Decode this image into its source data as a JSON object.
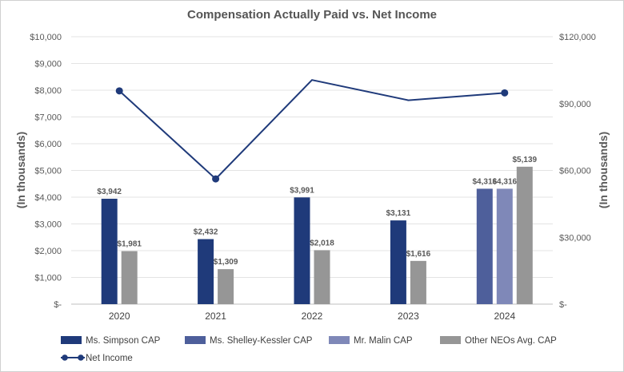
{
  "chart_data": {
    "type": "bar",
    "title": "Compensation Actually Paid vs. Net Income",
    "ylabel_left": "(In thousands)",
    "ylabel_right": "(In thousands)",
    "categories": [
      "2020",
      "2021",
      "2022",
      "2023",
      "2024"
    ],
    "ylim_left": [
      0,
      10000
    ],
    "ylim_right": [
      0,
      120000
    ],
    "yticks_left": [
      "$-",
      "$1,000",
      "$2,000",
      "$3,000",
      "$4,000",
      "$5,000",
      "$6,000",
      "$7,000",
      "$8,000",
      "$9,000",
      "$10,000"
    ],
    "yticks_right": [
      "$-",
      "$30,000",
      "$60,000",
      "$90,000",
      "$120,000"
    ],
    "grid": true,
    "legend_position": "bottom",
    "series": [
      {
        "name": "Ms. Simpson CAP",
        "color": "#1f3a7a",
        "values": [
          3942,
          2432,
          3991,
          3131,
          null
        ],
        "labels": [
          "$3,942",
          "$2,432",
          "$3,991",
          "$3,131",
          null
        ]
      },
      {
        "name": "Ms. Shelley-Kessler CAP",
        "color": "#4e5f9b",
        "values": [
          null,
          null,
          null,
          null,
          4316
        ],
        "labels": [
          null,
          null,
          null,
          null,
          "$4,316"
        ]
      },
      {
        "name": "Mr. Malin CAP",
        "color": "#7f88b8",
        "values": [
          null,
          null,
          null,
          null,
          4316
        ],
        "labels": [
          null,
          null,
          null,
          null,
          "$4,316"
        ]
      },
      {
        "name": "Other NEOs Avg. CAP",
        "color": "#969696",
        "values": [
          1981,
          1309,
          2018,
          1616,
          5139
        ],
        "labels": [
          "$1,981",
          "$1,309",
          "$2,018",
          "$1,616",
          "$5,139"
        ]
      }
    ],
    "line_series": {
      "name": "Net Income",
      "color": "#1f3a7a",
      "axis": "right",
      "values": [
        95700,
        56200,
        100600,
        91500,
        94800
      ],
      "markers": [
        true,
        true,
        false,
        false,
        true
      ]
    }
  }
}
